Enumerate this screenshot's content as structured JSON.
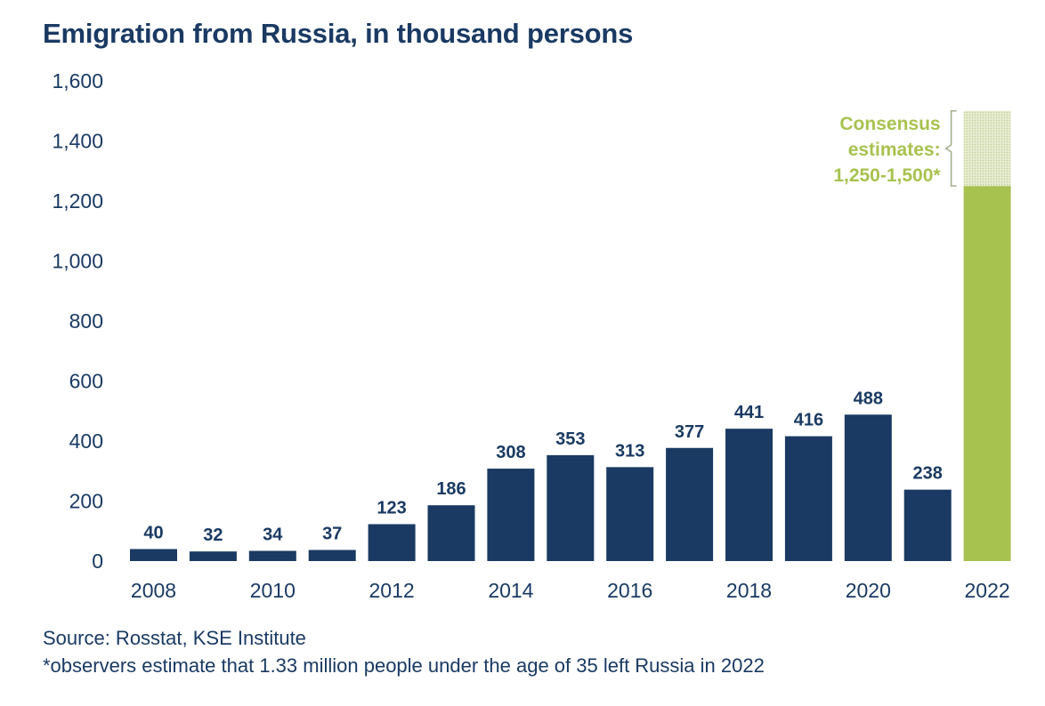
{
  "chart_data": {
    "type": "bar",
    "title": "Emigration from Russia, in thousand persons",
    "xlabel": "",
    "ylabel": "",
    "ylim": [
      0,
      1600
    ],
    "yticks": [
      0,
      200,
      400,
      600,
      800,
      1000,
      1200,
      1400,
      1600
    ],
    "ytick_labels": [
      "0",
      "200",
      "400",
      "600",
      "800",
      "1,000",
      "1,200",
      "1,400",
      "1,600"
    ],
    "categories": [
      "2008",
      "2009",
      "2010",
      "2011",
      "2012",
      "2013",
      "2014",
      "2015",
      "2016",
      "2017",
      "2018",
      "2019",
      "2020",
      "2021",
      "2022"
    ],
    "xtick_labels": [
      "2008",
      "",
      "2010",
      "",
      "2012",
      "",
      "2014",
      "",
      "2016",
      "",
      "2018",
      "",
      "2020",
      "",
      "2022"
    ],
    "values": [
      40,
      32,
      34,
      37,
      123,
      186,
      308,
      353,
      313,
      377,
      441,
      416,
      488,
      238,
      null
    ],
    "data_labels": [
      "40",
      "32",
      "34",
      "37",
      "123",
      "186",
      "308",
      "353",
      "313",
      "377",
      "441",
      "416",
      "488",
      "238",
      ""
    ],
    "estimate": {
      "category": "2022",
      "low": 1250,
      "high": 1500,
      "label_lines": [
        "Consensus",
        "estimates:",
        "1,250-1,500*"
      ]
    },
    "grid": false,
    "legend": "none",
    "colors": {
      "bar": "#1a3a63",
      "estimate": "#a8c24f",
      "estimate_range": "#dfe6c8",
      "text": "#1a3a63"
    }
  },
  "footnotes": {
    "source": "Source: Rosstat, KSE Institute",
    "note": "*observers estimate that 1.33 million people under the age of 35 left Russia in 2022"
  }
}
